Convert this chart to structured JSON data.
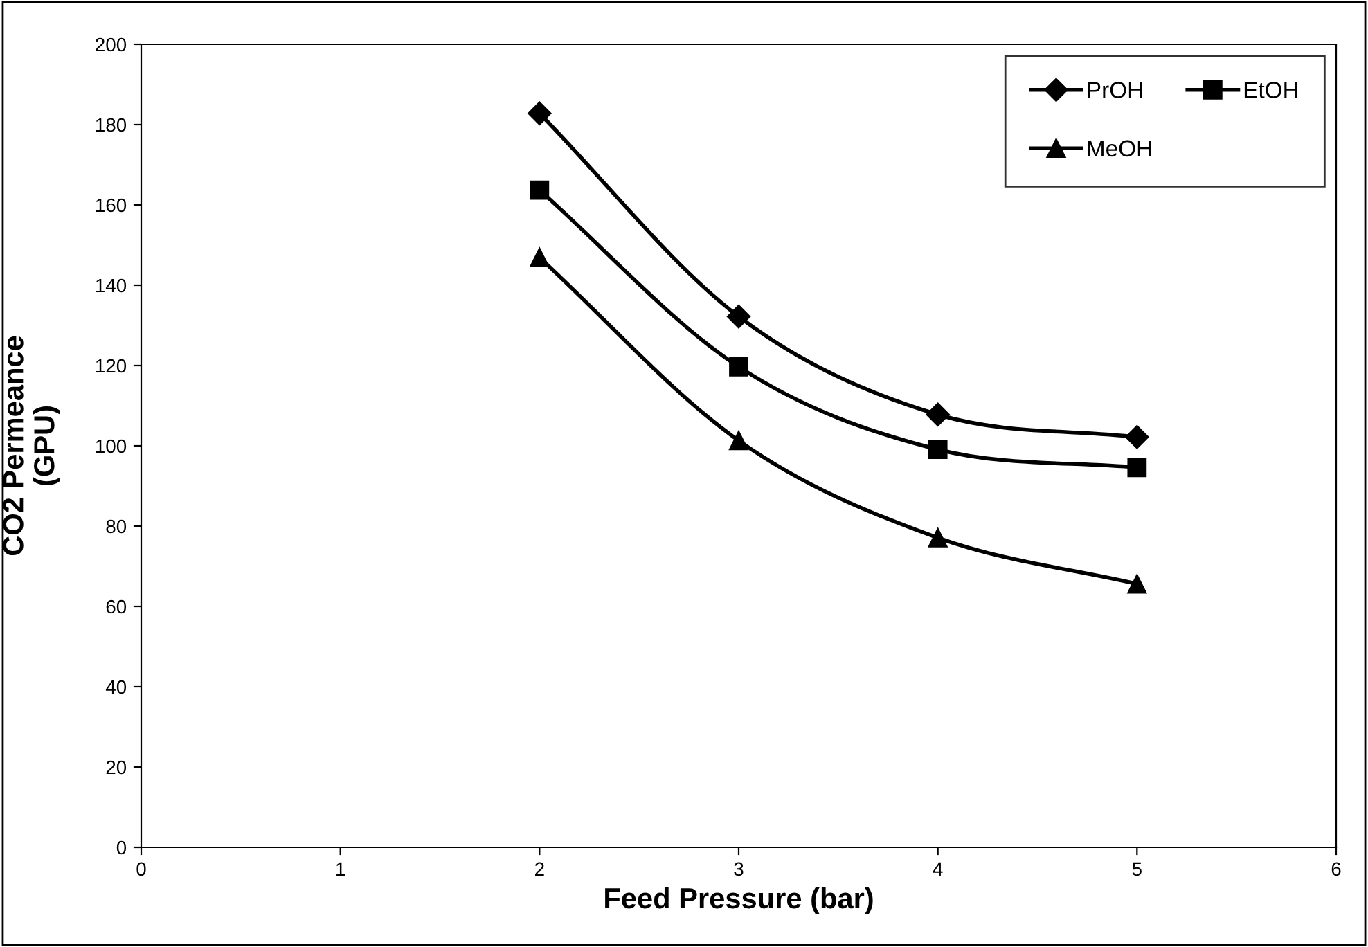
{
  "chart_data": {
    "type": "line",
    "xlabel": "Feed Pressure (bar)",
    "ylabel": "CO2 Permeance\n(GPU)",
    "x": [
      2,
      3,
      4,
      5
    ],
    "xlim": [
      0,
      6
    ],
    "xticks": [
      0,
      1,
      2,
      3,
      4,
      5,
      6
    ],
    "ylim": [
      0,
      200
    ],
    "yticks": [
      0,
      20,
      40,
      60,
      80,
      100,
      120,
      140,
      160,
      180,
      200
    ],
    "grid": false,
    "legend": "top right",
    "line_style": "solid",
    "series": [
      {
        "name": "PrOH",
        "color": "#000000",
        "marker": "diamond",
        "values": [
          182.8,
          132.2,
          107.8,
          102.2
        ]
      },
      {
        "name": "EtOH",
        "color": "#000000",
        "marker": "square",
        "values": [
          163.7,
          119.7,
          99.1,
          94.6
        ]
      },
      {
        "name": "MeOH",
        "color": "#000000",
        "marker": "triangle",
        "values": [
          146.9,
          101.3,
          77.1,
          65.6
        ]
      }
    ]
  }
}
